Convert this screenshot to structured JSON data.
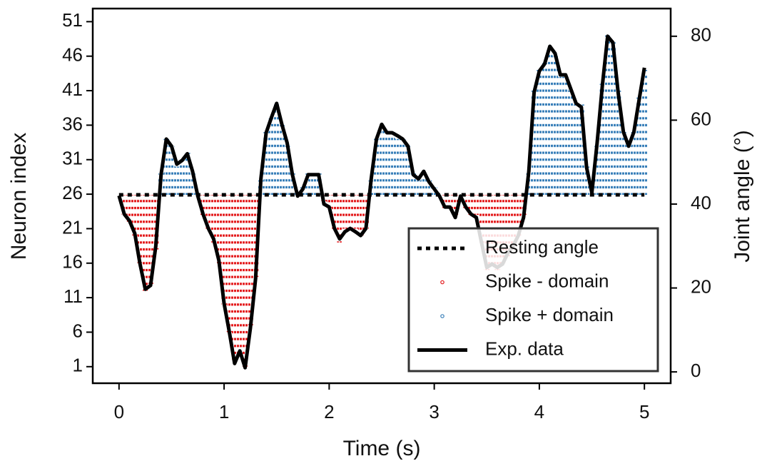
{
  "chart_data": {
    "type": "line",
    "xlabel": "Time (s)",
    "ylabel": "Neuron index",
    "y2label": "Joint angle (°)",
    "xlim": [
      -0.25,
      5.25
    ],
    "xticks": [
      0,
      1,
      2,
      3,
      4,
      5
    ],
    "ylim": [
      -1.4,
      52.9
    ],
    "yticks": [
      1,
      6,
      11,
      16,
      21,
      26,
      31,
      36,
      41,
      46,
      51
    ],
    "y2lim": [
      -2.7,
      86.6
    ],
    "y2ticks": [
      0,
      20,
      40,
      60,
      80
    ],
    "legend": "lower right",
    "x": [
      0,
      0.05,
      0.1,
      0.15,
      0.2,
      0.25,
      0.3,
      0.35,
      0.4,
      0.45,
      0.5,
      0.55,
      0.6,
      0.65,
      0.7,
      0.75,
      0.8,
      0.85,
      0.9,
      0.95,
      1,
      1.05,
      1.1,
      1.15,
      1.2,
      1.25,
      1.3,
      1.35,
      1.4,
      1.45,
      1.5,
      1.55,
      1.6,
      1.65,
      1.7,
      1.75,
      1.8,
      1.85,
      1.9,
      1.95,
      2,
      2.05,
      2.1,
      2.15,
      2.2,
      2.25,
      2.3,
      2.35,
      2.4,
      2.45,
      2.5,
      2.55,
      2.6,
      2.65,
      2.7,
      2.75,
      2.8,
      2.85,
      2.9,
      2.95,
      3,
      3.05,
      3.1,
      3.15,
      3.2,
      3.25,
      3.3,
      3.35,
      3.4,
      3.45,
      3.5,
      3.55,
      3.6,
      3.65,
      3.7,
      3.75,
      3.8,
      3.85,
      3.9,
      3.95,
      4,
      4.05,
      4.1,
      4.15,
      4.2,
      4.25,
      4.3,
      4.35,
      4.4,
      4.45,
      4.5,
      4.55,
      4.6,
      4.65,
      4.7,
      4.75,
      4.8,
      4.85,
      4.9,
      4.95,
      5
    ],
    "series": [
      {
        "name": "Resting angle",
        "color": "#000000",
        "axis": "y2",
        "style": "dotted",
        "value": 42.2
      },
      {
        "name": "Spike - domain",
        "color": "#e31a1c",
        "style": "spikes",
        "values": [
          null,
          23,
          22,
          20,
          16,
          12,
          13,
          18,
          null,
          null,
          null,
          null,
          null,
          null,
          null,
          null,
          23,
          21,
          19,
          16,
          10,
          6,
          2,
          3,
          1,
          7,
          14,
          null,
          null,
          null,
          null,
          null,
          null,
          null,
          null,
          null,
          null,
          null,
          null,
          25,
          24,
          21,
          19,
          21,
          21,
          21,
          20,
          21,
          null,
          null,
          null,
          null,
          null,
          null,
          null,
          null,
          null,
          null,
          null,
          null,
          null,
          null,
          24,
          24,
          23,
          null,
          24,
          23,
          23,
          19,
          15,
          16,
          15,
          16,
          17,
          18,
          20,
          23,
          null,
          null,
          null,
          null,
          null,
          null,
          null,
          null,
          null,
          null,
          null,
          null,
          null,
          null,
          null,
          null,
          null,
          null,
          null,
          null,
          null,
          null,
          null
        ]
      },
      {
        "name": "Spike + domain",
        "color": "#377eb8",
        "style": "spikes",
        "values": [
          null,
          null,
          null,
          null,
          null,
          null,
          null,
          null,
          29,
          34,
          33,
          30,
          31,
          32,
          29,
          null,
          null,
          null,
          null,
          null,
          null,
          null,
          null,
          null,
          null,
          null,
          null,
          28,
          35,
          37,
          39,
          36,
          33,
          29,
          null,
          27,
          29,
          29,
          29,
          null,
          null,
          null,
          null,
          null,
          null,
          null,
          null,
          null,
          28,
          34,
          36,
          35,
          35,
          34,
          34,
          33,
          29,
          28,
          29,
          28,
          27,
          null,
          null,
          null,
          null,
          null,
          null,
          null,
          null,
          null,
          null,
          null,
          null,
          null,
          null,
          null,
          null,
          null,
          29,
          41,
          44,
          45,
          47,
          46,
          43,
          43,
          41,
          39,
          39,
          30,
          null,
          33,
          42,
          49,
          48,
          41,
          35,
          33,
          35,
          40,
          44
        ]
      },
      {
        "name": "Exp. data",
        "color": "#000000",
        "axis": "y2",
        "style": "solid",
        "values": [
          42,
          37.6,
          36,
          33,
          25.7,
          19.7,
          20.6,
          30,
          47,
          55.5,
          53.8,
          49.5,
          50.4,
          52,
          47.8,
          41.9,
          37.6,
          34.2,
          31.7,
          26.6,
          16.3,
          9.5,
          2,
          5,
          1,
          10.4,
          22.3,
          46,
          57,
          60.6,
          64,
          59,
          54.6,
          47,
          41.9,
          43.6,
          47,
          47,
          47,
          40,
          39.3,
          34.2,
          31.7,
          33.4,
          34.2,
          33.4,
          32.5,
          34.2,
          46,
          55.5,
          59,
          57,
          57,
          56.3,
          55.5,
          53.8,
          47,
          46,
          47.8,
          45.3,
          43.6,
          41.9,
          39.3,
          39.3,
          36.8,
          41.9,
          39.3,
          37.6,
          36.8,
          30.8,
          24.9,
          25.7,
          24.9,
          25.7,
          28.3,
          30,
          32.5,
          36.8,
          47.8,
          66.6,
          71.7,
          73.4,
          77.6,
          75.9,
          70.8,
          70.8,
          67.4,
          64,
          63.1,
          48.7,
          42.7,
          54.6,
          68.3,
          80,
          78.5,
          66.6,
          57.2,
          53.8,
          57.2,
          64.9,
          72.5
        ]
      }
    ]
  }
}
